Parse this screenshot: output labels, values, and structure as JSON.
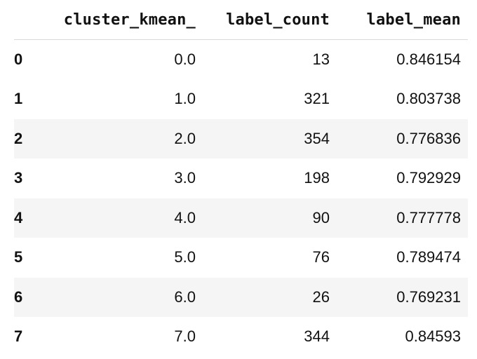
{
  "table": {
    "columns": [
      "",
      "cluster_kmean_",
      "label_count",
      "label_mean"
    ],
    "rows": [
      {
        "index": "0",
        "cluster_kmean_": "0.0",
        "label_count": "13",
        "label_mean": "0.846154"
      },
      {
        "index": "1",
        "cluster_kmean_": "1.0",
        "label_count": "321",
        "label_mean": "0.803738"
      },
      {
        "index": "2",
        "cluster_kmean_": "2.0",
        "label_count": "354",
        "label_mean": "0.776836"
      },
      {
        "index": "3",
        "cluster_kmean_": "3.0",
        "label_count": "198",
        "label_mean": "0.792929"
      },
      {
        "index": "4",
        "cluster_kmean_": "4.0",
        "label_count": "90",
        "label_mean": "0.777778"
      },
      {
        "index": "5",
        "cluster_kmean_": "5.0",
        "label_count": "76",
        "label_mean": "0.789474"
      },
      {
        "index": "6",
        "cluster_kmean_": "6.0",
        "label_count": "26",
        "label_mean": "0.769231"
      },
      {
        "index": "7",
        "cluster_kmean_": "7.0",
        "label_count": "344",
        "label_mean": "0.84593"
      }
    ]
  },
  "colors": {
    "row_stripe": "#f5f5f5",
    "header_border": "#d9d9d9",
    "text": "#111111"
  }
}
